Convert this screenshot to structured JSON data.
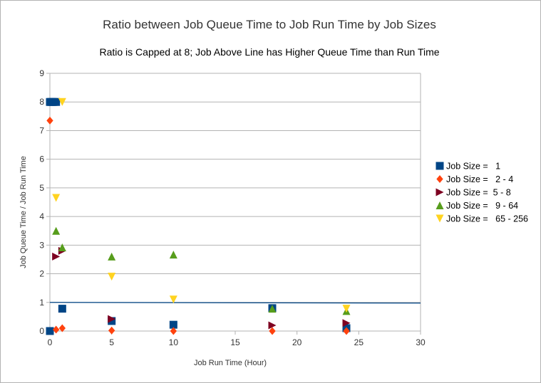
{
  "chart_data": {
    "type": "scatter",
    "title": "Ratio between Job Queue Time to Job Run Time by Job Sizes",
    "subtitle": "Ratio is Capped at 8; Job Above Line has Higher Queue Time than Run Time",
    "xlabel": "Job Run Time (Hour)",
    "ylabel": "Job Queue Time / Job Run Time",
    "xlim": [
      0,
      30
    ],
    "ylim": [
      0,
      9
    ],
    "x_ticks": [
      "0",
      "5",
      "10",
      "15",
      "20",
      "25",
      "30"
    ],
    "y_ticks": [
      "0",
      "1",
      "2",
      "3",
      "4",
      "5",
      "6",
      "7",
      "8",
      "9"
    ],
    "grid": "horizontal",
    "legend_position": "right",
    "reference_line": {
      "y": 1,
      "color": "#004586"
    },
    "series": [
      {
        "name": "Job Size =   1",
        "marker": "square",
        "color": "#004586",
        "points": [
          [
            0,
            8
          ],
          [
            0.1,
            8
          ],
          [
            0.2,
            8
          ],
          [
            0.3,
            8
          ],
          [
            0.5,
            8
          ],
          [
            0,
            0
          ],
          [
            1,
            0.78
          ],
          [
            5,
            0.35
          ],
          [
            10,
            0.22
          ],
          [
            18,
            0.8
          ],
          [
            24,
            0.1
          ]
        ]
      },
      {
        "name": "Job Size =   2 - 4",
        "marker": "diamond",
        "color": "#ff420e",
        "points": [
          [
            0,
            7.35
          ],
          [
            0.5,
            0.05
          ],
          [
            1,
            0.1
          ],
          [
            5,
            0.02
          ],
          [
            10,
            0
          ],
          [
            18,
            0
          ],
          [
            24,
            0
          ]
        ]
      },
      {
        "name": "Job Size =  5 - 8",
        "marker": "triangle-right",
        "color": "#7e0021",
        "points": [
          [
            0.5,
            2.6
          ],
          [
            1,
            2.8
          ],
          [
            5,
            0.42
          ],
          [
            18,
            0.2
          ],
          [
            24,
            0.28
          ]
        ]
      },
      {
        "name": "Job Size =   9 - 64",
        "marker": "triangle-up",
        "color": "#579d1c",
        "points": [
          [
            0.5,
            3.5
          ],
          [
            1,
            2.92
          ],
          [
            5,
            2.6
          ],
          [
            10,
            2.67
          ],
          [
            18,
            0.78
          ],
          [
            24,
            0.7
          ]
        ]
      },
      {
        "name": "Job Size =   65 - 256",
        "marker": "triangle-down",
        "color": "#ffd320",
        "points": [
          [
            1,
            8
          ],
          [
            0.5,
            4.65
          ],
          [
            5,
            1.9
          ],
          [
            10,
            1.1
          ],
          [
            24,
            0.78
          ]
        ]
      }
    ]
  }
}
